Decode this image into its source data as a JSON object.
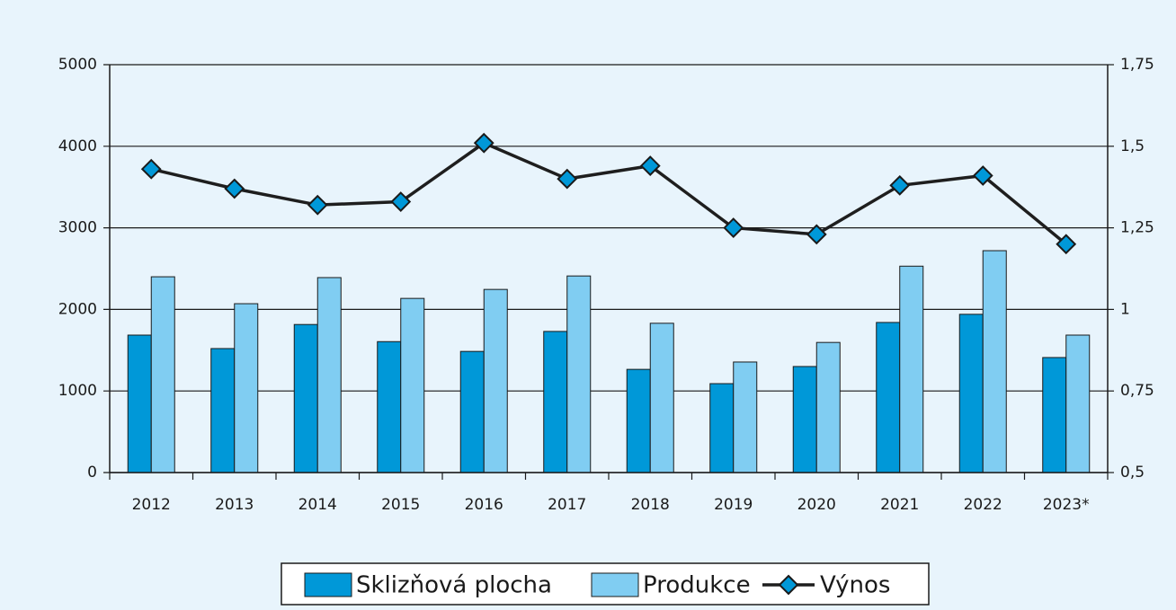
{
  "chart_data": {
    "type": "bar",
    "categories": [
      "2012",
      "2013",
      "2014",
      "2015",
      "2016",
      "2017",
      "2018",
      "2019",
      "2020",
      "2021",
      "2022",
      "2023*"
    ],
    "series": [
      {
        "name": "Sklizňová plocha",
        "color": "#0098d8",
        "type": "bar",
        "values": [
          1685,
          1520,
          1815,
          1605,
          1485,
          1730,
          1265,
          1090,
          1300,
          1840,
          1940,
          1410
        ]
      },
      {
        "name": "Produkce",
        "color": "#80cdf2",
        "type": "bar",
        "values": [
          2400,
          2070,
          2390,
          2135,
          2245,
          2410,
          1830,
          1355,
          1595,
          2530,
          2720,
          1685
        ]
      },
      {
        "name": "Výnos",
        "color": "#1e1e1e",
        "marker_color": "#0098d8",
        "type": "line",
        "axis": "y2",
        "values": [
          1.43,
          1.37,
          1.32,
          1.33,
          1.51,
          1.4,
          1.44,
          1.25,
          1.23,
          1.38,
          1.41,
          1.2
        ]
      }
    ],
    "ylim": [
      0,
      5000
    ],
    "yticks": [
      0,
      1000,
      2000,
      3000,
      4000,
      5000
    ],
    "y2lim": [
      0.5,
      1.75
    ],
    "y2ticks": [
      {
        "value": 0.5,
        "label": "0,5"
      },
      {
        "value": 0.75,
        "label": "0,75"
      },
      {
        "value": 1,
        "label": "1"
      },
      {
        "value": 1.25,
        "label": "1,25"
      },
      {
        "value": 1.5,
        "label": "1,5"
      },
      {
        "value": 1.75,
        "label": "1,75"
      }
    ],
    "grid": true,
    "legend": "bottom"
  }
}
